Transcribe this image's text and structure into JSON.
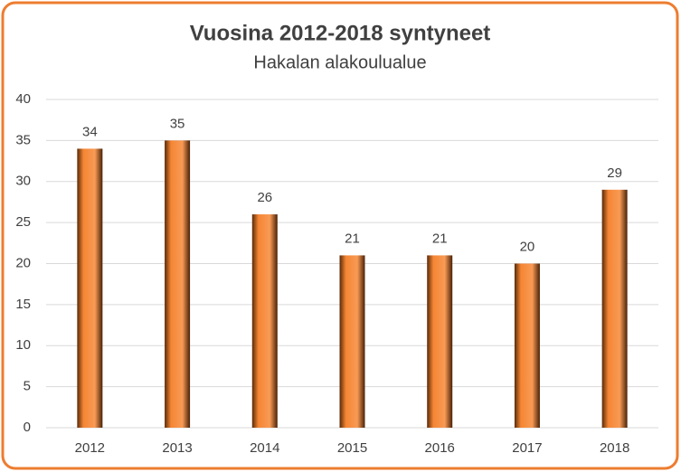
{
  "chart_data": {
    "type": "bar",
    "title": "Vuosina 2012-2018 syntyneet",
    "subtitle": "Hakalan alakoulualue",
    "categories": [
      "2012",
      "2013",
      "2014",
      "2015",
      "2016",
      "2017",
      "2018"
    ],
    "values": [
      34,
      35,
      26,
      21,
      21,
      20,
      29
    ],
    "color": "#f58634",
    "ylim": [
      0,
      40
    ],
    "yticks": [
      0,
      5,
      10,
      15,
      20,
      25,
      30,
      35,
      40
    ],
    "grid": true
  }
}
